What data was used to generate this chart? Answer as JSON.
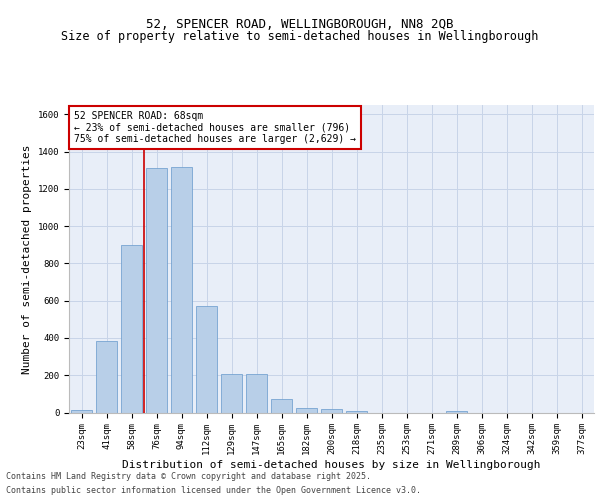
{
  "title": "52, SPENCER ROAD, WELLINGBOROUGH, NN8 2QB",
  "subtitle": "Size of property relative to semi-detached houses in Wellingborough",
  "xlabel": "Distribution of semi-detached houses by size in Wellingborough",
  "ylabel": "Number of semi-detached properties",
  "categories": [
    "23sqm",
    "41sqm",
    "58sqm",
    "76sqm",
    "94sqm",
    "112sqm",
    "129sqm",
    "147sqm",
    "165sqm",
    "182sqm",
    "200sqm",
    "218sqm",
    "235sqm",
    "253sqm",
    "271sqm",
    "289sqm",
    "306sqm",
    "324sqm",
    "342sqm",
    "359sqm",
    "377sqm"
  ],
  "values": [
    15,
    385,
    900,
    1310,
    1315,
    570,
    205,
    205,
    75,
    25,
    20,
    10,
    0,
    0,
    0,
    10,
    0,
    0,
    0,
    0,
    0
  ],
  "bar_color": "#b8cfe8",
  "bar_edge_color": "#6699cc",
  "vline_x": 2.5,
  "vline_color": "#cc0000",
  "annotation_title": "52 SPENCER ROAD: 68sqm",
  "annotation_line1": "← 23% of semi-detached houses are smaller (796)",
  "annotation_line2": "75% of semi-detached houses are larger (2,629) →",
  "annotation_box_color": "#ffffff",
  "annotation_border_color": "#cc0000",
  "ylim": [
    0,
    1650
  ],
  "yticks": [
    0,
    200,
    400,
    600,
    800,
    1000,
    1200,
    1400,
    1600
  ],
  "grid_color": "#c8d4e8",
  "bg_color": "#e8eef8",
  "footer_line1": "Contains HM Land Registry data © Crown copyright and database right 2025.",
  "footer_line2": "Contains public sector information licensed under the Open Government Licence v3.0.",
  "title_fontsize": 9,
  "subtitle_fontsize": 8.5,
  "ylabel_fontsize": 8,
  "xlabel_fontsize": 8,
  "tick_fontsize": 6.5,
  "annot_fontsize": 7,
  "footer_fontsize": 6
}
